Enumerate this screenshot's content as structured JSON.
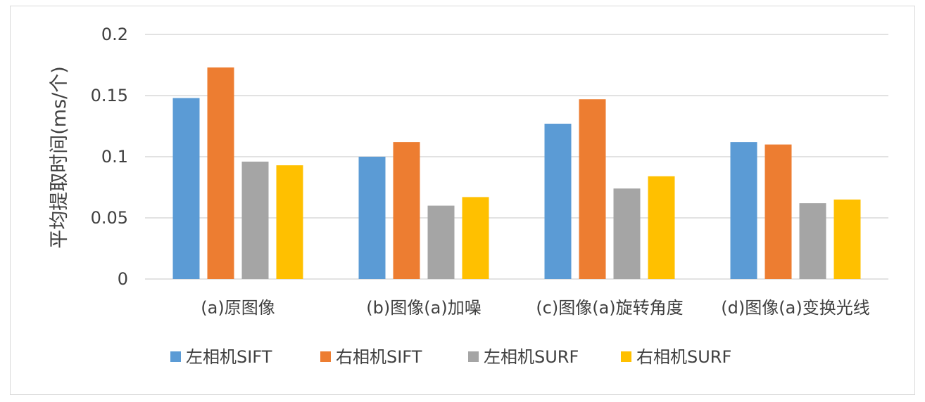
{
  "chart_data": {
    "type": "bar",
    "title": "",
    "xlabel": "",
    "ylabel": "平均提取时间(ms/个)",
    "ylim": [
      0,
      0.2
    ],
    "yticks": [
      "0",
      "0.05",
      "0.1",
      "0.15",
      "0.2"
    ],
    "ytick_values": [
      0,
      0.05,
      0.1,
      0.15,
      0.2
    ],
    "grid": true,
    "legend_position": "bottom",
    "categories": [
      "(a)原图像",
      "(b)图像(a)加噪",
      "(c)图像(a)旋转角度",
      "(d)图像(a)变换光线"
    ],
    "series": [
      {
        "name": "左相机SIFT",
        "color": "#5b9bd5",
        "values": [
          0.148,
          0.1,
          0.127,
          0.112
        ]
      },
      {
        "name": "右相机SIFT",
        "color": "#ed7d31",
        "values": [
          0.173,
          0.112,
          0.147,
          0.11
        ]
      },
      {
        "name": "左相机SURF",
        "color": "#a5a5a5",
        "values": [
          0.096,
          0.06,
          0.074,
          0.062
        ]
      },
      {
        "name": "右相机SURF",
        "color": "#ffc000",
        "values": [
          0.093,
          0.067,
          0.084,
          0.065
        ]
      }
    ]
  }
}
